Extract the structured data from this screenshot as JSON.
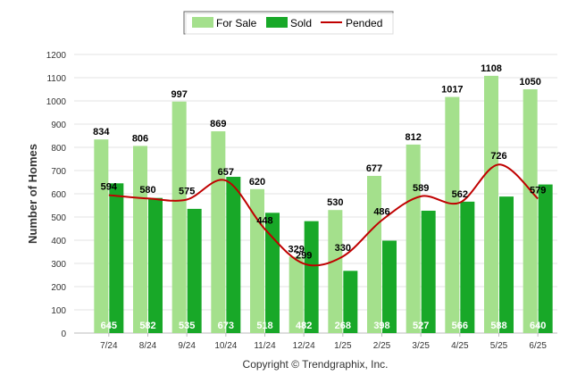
{
  "chart_data": {
    "type": "bar",
    "categories": [
      "7/24",
      "8/24",
      "9/24",
      "10/24",
      "11/24",
      "12/24",
      "1/25",
      "2/25",
      "3/25",
      "4/25",
      "5/25",
      "6/25"
    ],
    "series": [
      {
        "name": "For Sale",
        "type": "bar",
        "color": "#a4e08c",
        "values": [
          834,
          806,
          997,
          869,
          620,
          329,
          530,
          677,
          812,
          1017,
          1108,
          1050
        ]
      },
      {
        "name": "Sold",
        "type": "bar",
        "color": "#18a828",
        "values": [
          645,
          582,
          535,
          673,
          518,
          482,
          268,
          398,
          527,
          566,
          588,
          640
        ]
      },
      {
        "name": "Pended",
        "type": "line",
        "color": "#c00000",
        "values": [
          594,
          580,
          575,
          657,
          448,
          299,
          330,
          486,
          589,
          562,
          726,
          579
        ]
      }
    ],
    "ylabel": "Number of Homes",
    "xlabel": "",
    "ylim": [
      0,
      1200
    ],
    "yticks": [
      0,
      100,
      200,
      300,
      400,
      500,
      600,
      700,
      800,
      900,
      1000,
      1100,
      1200
    ],
    "grid": true,
    "legend": "top-center",
    "footer": "Copyright © Trendgraphix, Inc."
  }
}
